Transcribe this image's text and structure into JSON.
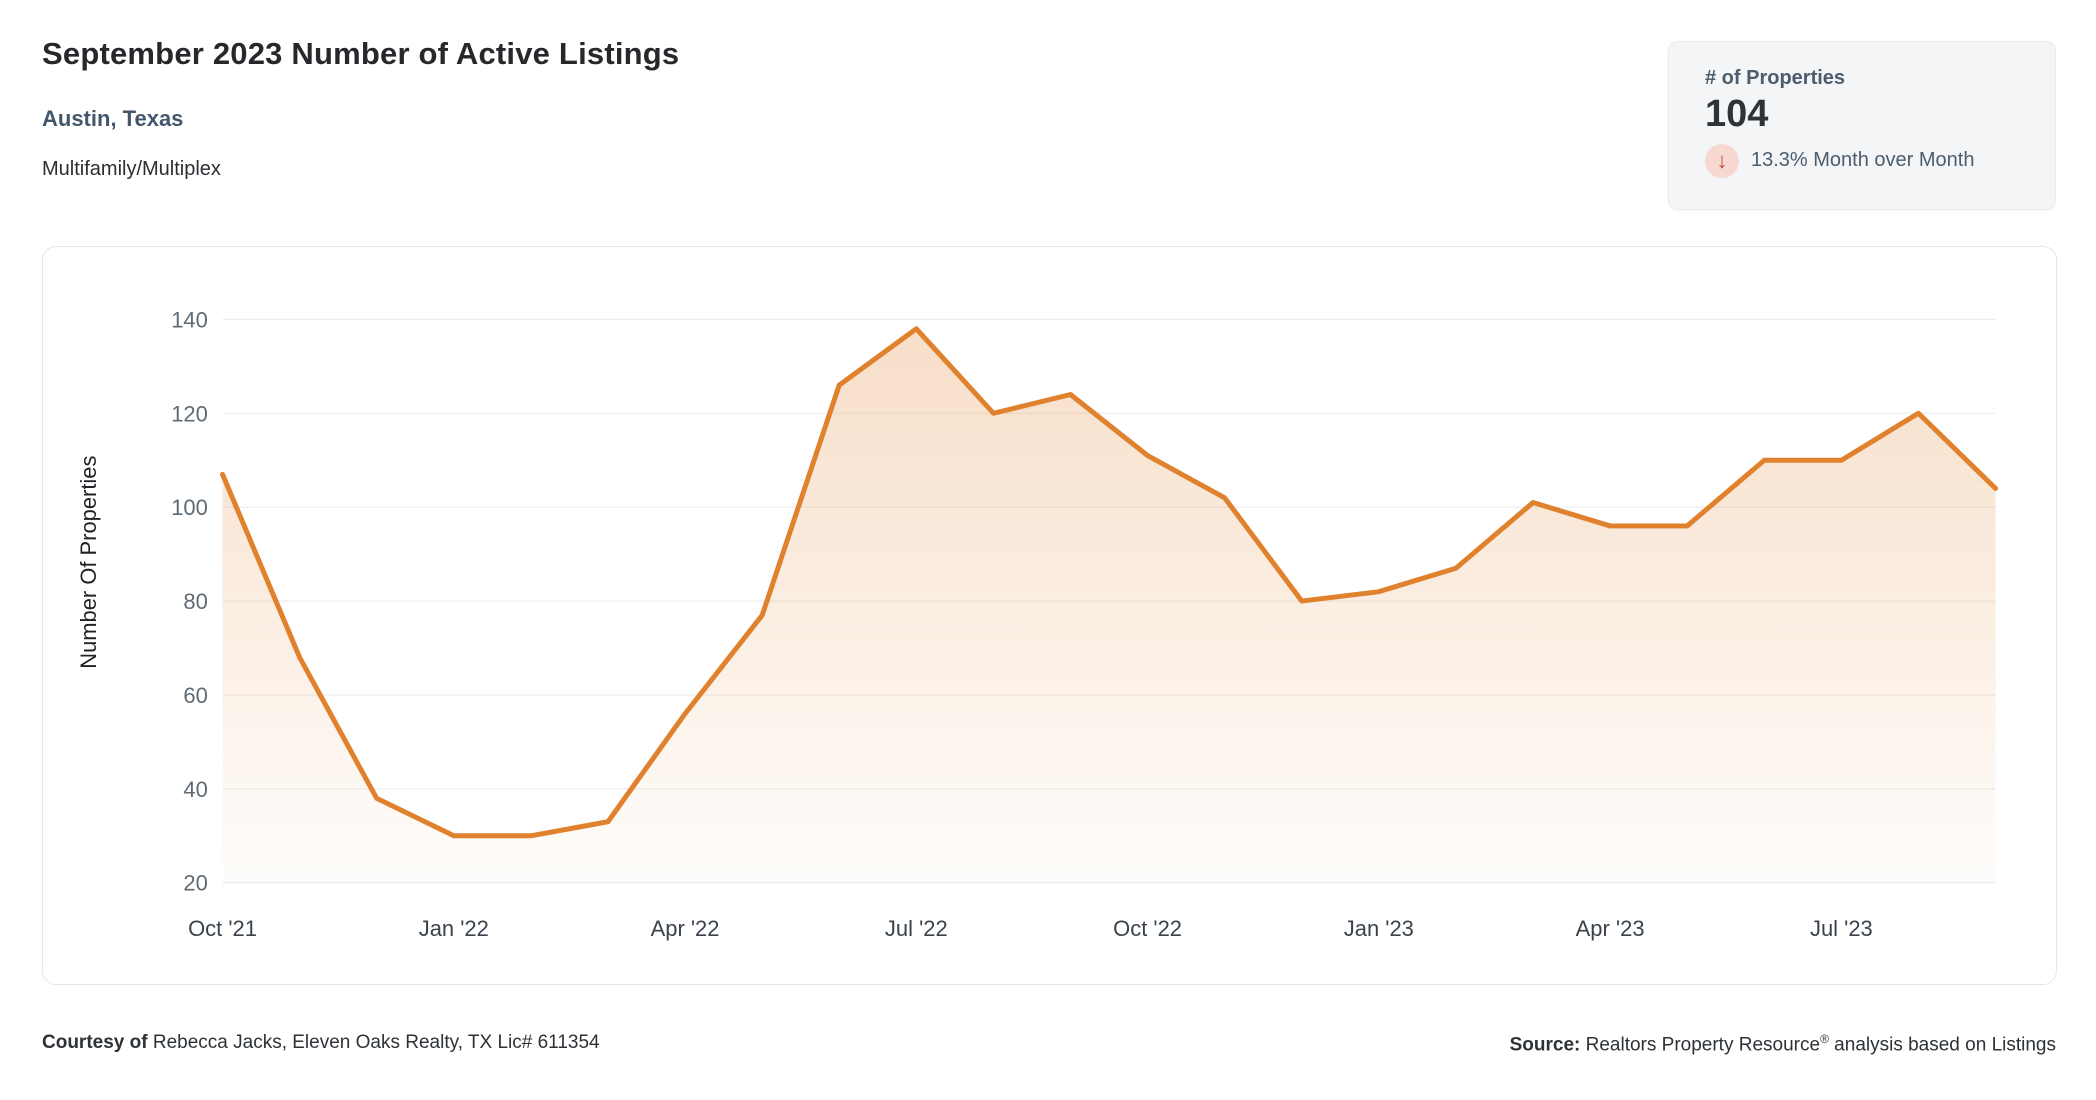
{
  "header": {
    "title": "September 2023 Number of Active Listings",
    "location": "Austin, Texas",
    "property_type": "Multifamily/Multiplex"
  },
  "stats_card": {
    "label": "# of Properties",
    "value": "104",
    "delta_icon": "arrow-down-icon",
    "delta_arrow": "↓",
    "delta_direction": "down",
    "delta_text": "13.3% Month over Month"
  },
  "chart_data": {
    "type": "area",
    "title": "September 2023 Number of Active Listings",
    "xlabel": "",
    "ylabel": "Number Of Properties",
    "categories": [
      "Oct '21",
      "Nov '21",
      "Dec '21",
      "Jan '22",
      "Feb '22",
      "Mar '22",
      "Apr '22",
      "May '22",
      "Jun '22",
      "Jul '22",
      "Aug '22",
      "Sep '22",
      "Oct '22",
      "Nov '22",
      "Dec '22",
      "Jan '23",
      "Feb '23",
      "Mar '23",
      "Apr '23",
      "May '23",
      "Jun '23",
      "Jul '23",
      "Aug '23",
      "Sep '23"
    ],
    "values": [
      107,
      68,
      38,
      30,
      30,
      33,
      56,
      77,
      126,
      138,
      120,
      124,
      111,
      102,
      80,
      82,
      87,
      101,
      96,
      96,
      110,
      110,
      120,
      104
    ],
    "x_tick_indices": [
      0,
      3,
      6,
      9,
      12,
      15,
      18,
      21
    ],
    "y_ticks": [
      20,
      40,
      60,
      80,
      100,
      120,
      140
    ],
    "ylim": [
      20,
      155.5
    ],
    "grid": true,
    "legend": "none",
    "series_name": "# of Properties"
  },
  "footer": {
    "courtesy_label": "Courtesy of",
    "courtesy_text": " Rebecca Jacks, Eleven Oaks Realty, TX Lic# 611354",
    "source_label": "Source:",
    "source_text_1": " Realtors Property Resource",
    "source_sup": "®",
    "source_text_2": " analysis based on Listings"
  },
  "colors": {
    "accent": "#E0822D",
    "grid": "#E9EAEC",
    "slate_text": "#4C5D6E",
    "delta_red": "#C7483B",
    "delta_red_bg": "#F6D8D1"
  }
}
